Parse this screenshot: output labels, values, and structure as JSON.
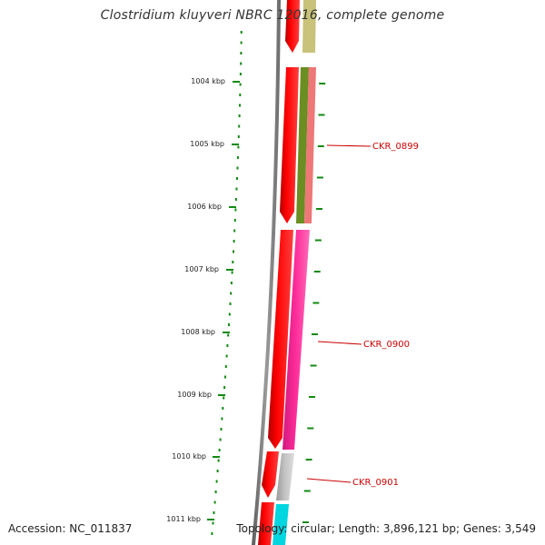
{
  "title": "Clostridium kluyveri NBRC 12016, complete genome",
  "footer": {
    "accession_label": "Accession:",
    "accession": "NC_011837",
    "topology_label": "Topology:",
    "topology": "circular",
    "length_label": "Length:",
    "length": "3,896,121 bp",
    "genes_label": "Genes:",
    "genes": "3,549"
  },
  "ruler": {
    "ticks": [
      "1004 kbp",
      "1005 kbp",
      "1006 kbp",
      "1007 kbp",
      "1008 kbp",
      "1009 kbp",
      "1010 kbp",
      "1011 kbp"
    ]
  },
  "genes": [
    {
      "name": "CKR_0899",
      "color": "#ee7777"
    },
    {
      "name": "CKR_0900",
      "color": "#ff2d9b"
    },
    {
      "name": "CKR_0901",
      "color": "#b8b8b8"
    }
  ],
  "colors": {
    "backbone": "#808080",
    "forward_genes": "#ee0000",
    "ruler_dots": "#138a13",
    "label_text": "#cc0000",
    "olive_track": "#6b8e23",
    "khaki_track": "#c8c27a",
    "cyan_track": "#00d6e0"
  }
}
